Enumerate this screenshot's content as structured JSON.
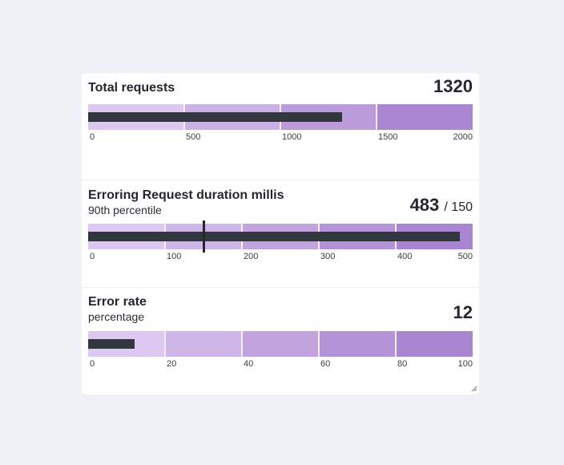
{
  "chart_data": [
    {
      "type": "bullet",
      "title": "Total requests",
      "subtitle": "",
      "value": 1320,
      "value_label": "1320",
      "target": null,
      "target_label": "",
      "range": [
        0,
        2000
      ],
      "ticks": [
        "0",
        "500",
        "1000",
        "1500",
        "2000"
      ],
      "bands": [
        500,
        1000,
        1500,
        2000
      ],
      "band_colors": [
        "#dcc8f0",
        "#cbb0e3",
        "#bb9bd9",
        "#ab86d2"
      ]
    },
    {
      "type": "bullet",
      "title": "Erroring Request duration millis",
      "subtitle": "90th percentile",
      "value": 483,
      "value_label": "483",
      "target": 150,
      "target_label": "/ 150",
      "range": [
        0,
        500
      ],
      "ticks": [
        "0",
        "100",
        "200",
        "300",
        "400",
        "500"
      ],
      "bands": [
        100,
        200,
        300,
        400,
        500
      ],
      "band_colors": [
        "#dcc8f0",
        "#cfb6e8",
        "#c2a3de",
        "#b593d9",
        "#aa86d2"
      ]
    },
    {
      "type": "bullet",
      "title": "Error rate",
      "subtitle": "percentage",
      "value": 12,
      "value_label": "12",
      "target": null,
      "target_label": "",
      "range": [
        0,
        100
      ],
      "ticks": [
        "0",
        "20",
        "40",
        "60",
        "80",
        "100"
      ],
      "bands": [
        20,
        40,
        60,
        80,
        100
      ],
      "band_colors": [
        "#dcc8f0",
        "#cfb6e8",
        "#c2a3de",
        "#b593d9",
        "#aa86d2"
      ]
    }
  ],
  "colors": {
    "measure": "#32363f",
    "background": "#eef1f6",
    "card": "#ffffff"
  }
}
